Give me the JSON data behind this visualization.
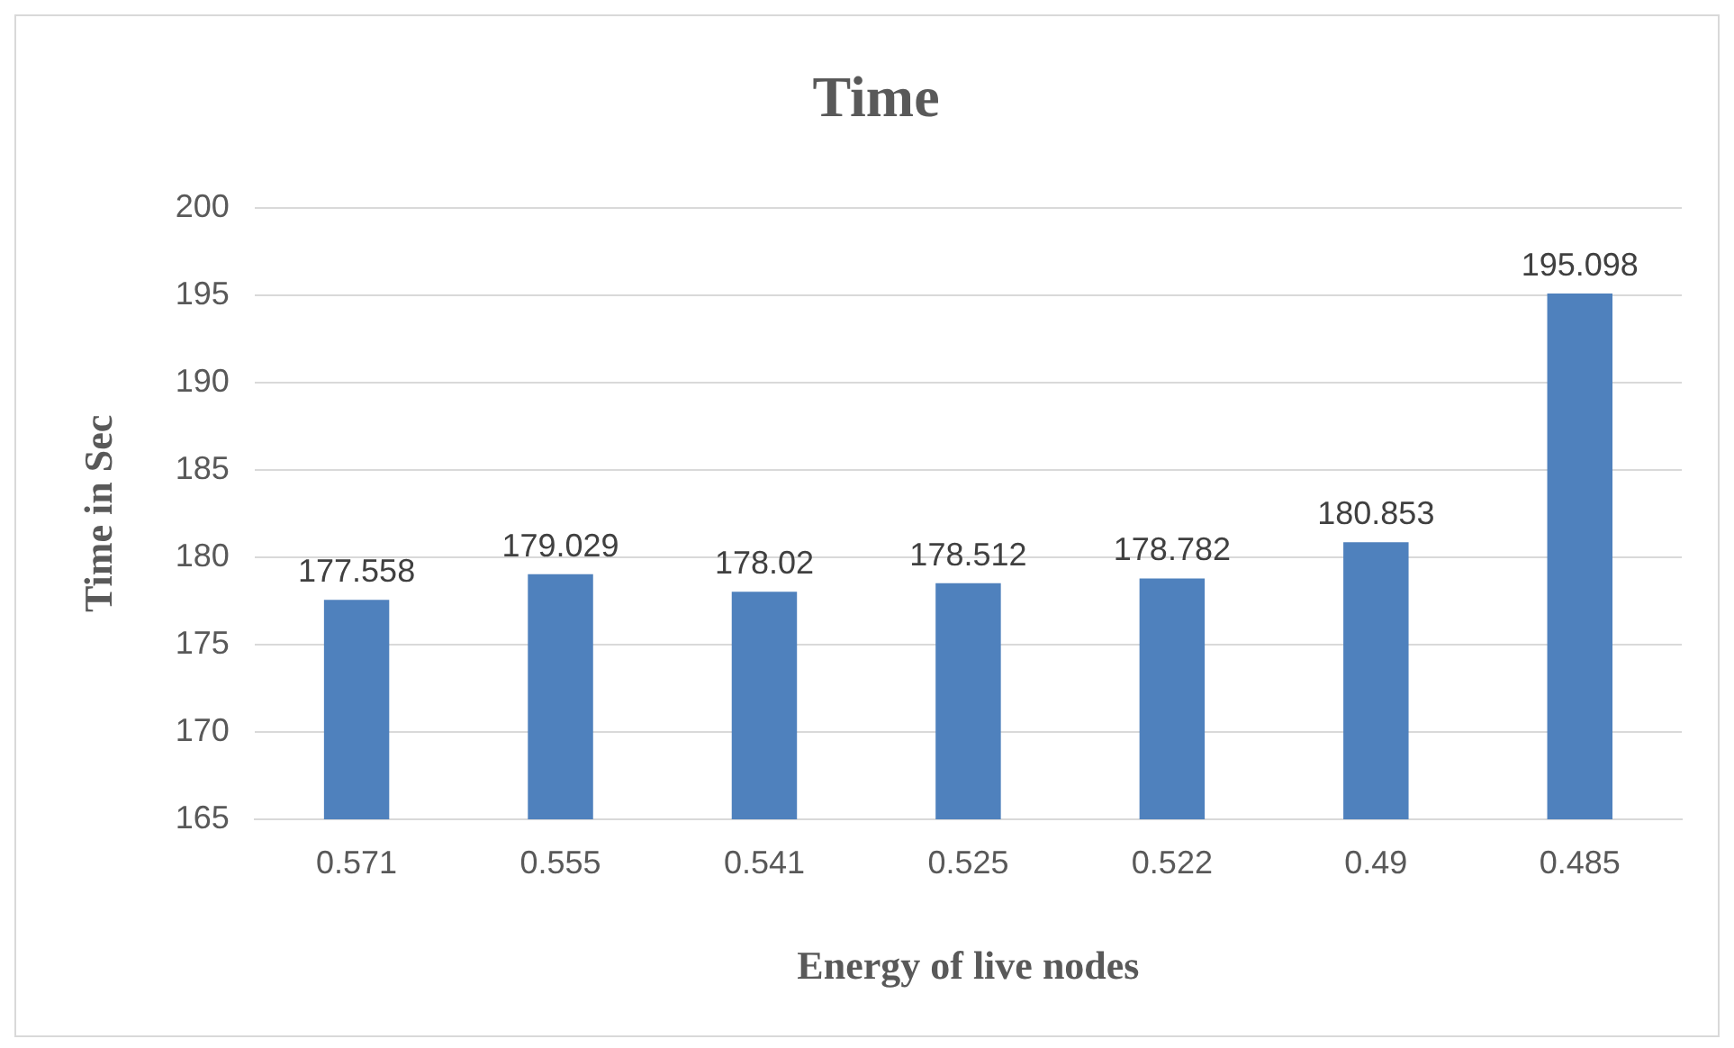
{
  "chart_data": {
    "type": "bar",
    "title": "Time",
    "xlabel": "Energy of live nodes",
    "ylabel": "Time in Sec",
    "categories": [
      "0.571",
      "0.555",
      "0.541",
      "0.525",
      "0.522",
      "0.49",
      "0.485"
    ],
    "values": [
      177.558,
      179.029,
      178.02,
      178.512,
      178.782,
      180.853,
      195.098
    ],
    "color": "#4f81bd",
    "ylim": [
      165,
      200
    ],
    "yticks": [
      165,
      170,
      175,
      180,
      185,
      190,
      195,
      200
    ],
    "grid": "y",
    "data_labels": true
  }
}
